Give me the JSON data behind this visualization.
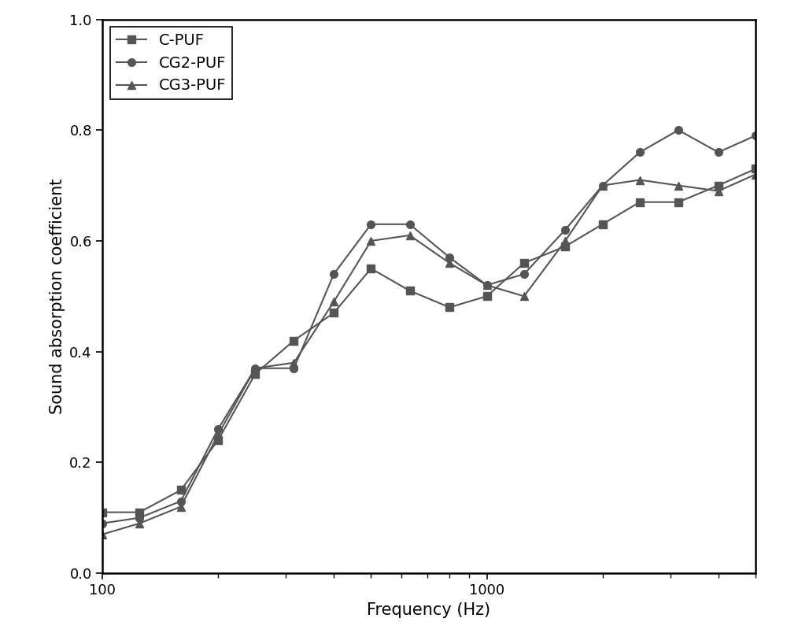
{
  "series": [
    {
      "label": "C-PUF",
      "color": "#555555",
      "marker": "s",
      "x": [
        100,
        125,
        160,
        200,
        250,
        315,
        400,
        500,
        630,
        800,
        1000,
        1250,
        1600,
        2000,
        2500,
        3150,
        4000,
        5000
      ],
      "y": [
        0.11,
        0.11,
        0.15,
        0.24,
        0.36,
        0.42,
        0.47,
        0.55,
        0.51,
        0.48,
        0.5,
        0.56,
        0.59,
        0.63,
        0.67,
        0.67,
        0.7,
        0.73
      ]
    },
    {
      "label": "CG2-PUF",
      "color": "#555555",
      "marker": "o",
      "x": [
        100,
        125,
        160,
        200,
        250,
        315,
        400,
        500,
        630,
        800,
        1000,
        1250,
        1600,
        2000,
        2500,
        3150,
        4000,
        5000
      ],
      "y": [
        0.09,
        0.1,
        0.13,
        0.26,
        0.37,
        0.37,
        0.54,
        0.63,
        0.63,
        0.57,
        0.52,
        0.54,
        0.62,
        0.7,
        0.76,
        0.8,
        0.76,
        0.79
      ]
    },
    {
      "label": "CG3-PUF",
      "color": "#555555",
      "marker": "^",
      "x": [
        100,
        125,
        160,
        200,
        250,
        315,
        400,
        500,
        630,
        800,
        1000,
        1250,
        1600,
        2000,
        2500,
        3150,
        4000,
        5000
      ],
      "y": [
        0.07,
        0.09,
        0.12,
        0.25,
        0.37,
        0.38,
        0.49,
        0.6,
        0.61,
        0.56,
        0.52,
        0.5,
        0.6,
        0.7,
        0.71,
        0.7,
        0.69,
        0.72
      ]
    }
  ],
  "xlabel": "Frequency (Hz)",
  "ylabel": "Sound absorption coefficient",
  "xlim": [
    100,
    5000
  ],
  "ylim": [
    0.0,
    1.0
  ],
  "yticks": [
    0.0,
    0.2,
    0.4,
    0.6,
    0.8,
    1.0
  ],
  "xtick_major": [
    100,
    1000
  ],
  "background_color": "#ffffff",
  "linewidth": 1.5,
  "markersize": 7,
  "legend_fontsize": 14,
  "axis_label_fontsize": 15,
  "tick_fontsize": 13,
  "spine_linewidth": 1.8
}
